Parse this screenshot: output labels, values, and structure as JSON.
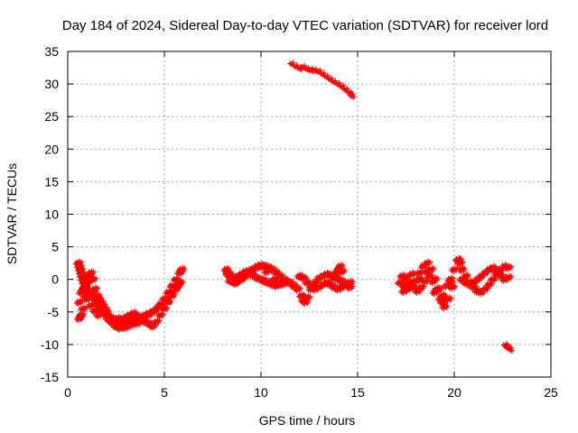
{
  "chart_data": {
    "type": "scatter",
    "title": "Day 184 of 2024, Sidereal Day-to-day VTEC variation (SDTVAR) for receiver lord",
    "xlabel": "GPS time / hours",
    "ylabel": "SDTVAR / TECUs",
    "xlim": [
      0,
      25
    ],
    "ylim": [
      -15,
      35
    ],
    "x_ticks": [
      0,
      5,
      10,
      15,
      20,
      25
    ],
    "y_ticks": [
      -15,
      -10,
      -5,
      0,
      5,
      10,
      15,
      20,
      25,
      30,
      35
    ],
    "grid": true,
    "marker": "+",
    "color": "#ff0000",
    "series": [
      {
        "name": "seg-0.5-2.5",
        "x": [
          0.55,
          0.6,
          0.65,
          0.7,
          0.75,
          0.8,
          0.85,
          0.9,
          1.0,
          1.1,
          1.2,
          1.3,
          1.4,
          1.5,
          1.6,
          1.7,
          1.8,
          1.9,
          2.0,
          2.1,
          2.2,
          2.3,
          2.4,
          2.5,
          0.6,
          0.7,
          0.8,
          0.9,
          1.0,
          1.1,
          1.2,
          1.3,
          1.4,
          1.5,
          1.6,
          1.7,
          1.8,
          1.9,
          2.0,
          2.2,
          2.4,
          0.6,
          0.7,
          0.8,
          0.9,
          1.0,
          1.2,
          1.4,
          1.6
        ],
        "y": [
          2.5,
          2.0,
          1.5,
          1.0,
          0.5,
          0.0,
          -0.5,
          -1.0,
          -1.5,
          -2.0,
          -2.0,
          -2.5,
          -3.0,
          -3.5,
          -4.0,
          -4.5,
          -5.0,
          -5.2,
          -5.5,
          -6.0,
          -6.3,
          -6.6,
          -6.8,
          -7.2,
          -3.5,
          -2.0,
          -1.5,
          -1.0,
          -0.5,
          0.5,
          1.0,
          0.0,
          -1.5,
          -2.5,
          -3.0,
          -3.5,
          -4.0,
          -4.5,
          -5.0,
          -5.8,
          -6.2,
          -6.0,
          -5.5,
          -4.5,
          -2.5,
          -3.0,
          -4.0,
          -4.8,
          -5.5
        ]
      },
      {
        "name": "seg-2.5-5.9",
        "x": [
          2.5,
          2.6,
          2.7,
          2.8,
          2.9,
          3.0,
          3.2,
          3.4,
          3.6,
          3.8,
          4.0,
          4.2,
          4.4,
          4.6,
          4.8,
          5.0,
          5.2,
          5.4,
          5.6,
          5.8,
          5.9,
          2.6,
          2.8,
          3.0,
          3.2,
          3.4,
          3.6,
          3.8,
          4.0,
          4.2,
          4.4,
          4.6,
          4.8,
          5.0,
          5.2,
          5.4,
          5.6,
          5.8,
          2.8,
          3.0,
          3.3,
          3.6,
          3.9,
          4.2,
          4.5,
          4.8,
          5.1,
          5.4,
          5.7
        ],
        "y": [
          -6.8,
          -7.2,
          -7.5,
          -7.0,
          -6.5,
          -6.8,
          -6.5,
          -6.2,
          -6.0,
          -5.8,
          -5.5,
          -5.2,
          -5.0,
          -4.5,
          -3.8,
          -3.0,
          -2.0,
          -1.0,
          0.0,
          1.0,
          1.5,
          -6.0,
          -6.2,
          -5.8,
          -5.5,
          -5.2,
          -5.6,
          -6.0,
          -6.5,
          -6.8,
          -7.2,
          -6.5,
          -5.5,
          -4.5,
          -3.5,
          -2.5,
          -1.5,
          -0.5,
          -7.0,
          -7.4,
          -7.0,
          -6.8,
          -6.2,
          -5.5,
          -4.8,
          -4.0,
          -3.0,
          -2.0,
          -1.0
        ]
      },
      {
        "name": "seg-8.2-11.5",
        "x": [
          8.2,
          8.3,
          8.4,
          8.5,
          8.6,
          8.8,
          9.0,
          9.2,
          9.4,
          9.6,
          9.8,
          10.0,
          10.2,
          10.4,
          10.6,
          10.8,
          11.0,
          11.2,
          11.4,
          8.4,
          8.6,
          8.8,
          9.0,
          9.2,
          9.4,
          9.6,
          9.8,
          10.0,
          10.2,
          10.4,
          10.6,
          10.8,
          11.0,
          11.2,
          8.3,
          8.7,
          9.1,
          9.5,
          9.9,
          10.3,
          10.7,
          11.1
        ],
        "y": [
          1.5,
          1.0,
          0.5,
          0.0,
          -0.5,
          -0.3,
          0.0,
          0.5,
          1.0,
          1.5,
          2.0,
          2.2,
          2.0,
          1.8,
          1.5,
          1.0,
          0.5,
          0.0,
          -0.5,
          -0.2,
          0.2,
          0.5,
          0.8,
          1.2,
          1.0,
          0.6,
          0.2,
          0.0,
          -0.3,
          -0.5,
          -0.8,
          -1.0,
          -0.6,
          -0.3,
          0.8,
          -0.6,
          0.3,
          1.5,
          1.9,
          1.2,
          0.0,
          -0.8
        ]
      },
      {
        "name": "seg-11.5-14.7",
        "x": [
          11.5,
          11.7,
          11.9,
          12.1,
          12.2,
          12.3,
          12.4,
          12.6,
          12.8,
          13.0,
          13.2,
          13.4,
          13.6,
          13.8,
          14.0,
          14.2,
          14.4,
          14.6,
          12.0,
          12.2,
          12.4,
          12.6,
          12.8,
          13.0,
          13.2,
          13.4,
          13.6,
          13.8,
          14.0,
          14.2,
          14.4,
          14.6,
          13.9,
          14.0,
          14.1,
          14.2
        ],
        "y": [
          -0.5,
          -1.0,
          -1.5,
          -2.5,
          -3.2,
          -3.5,
          -2.8,
          -1.5,
          -0.5,
          0.2,
          0.5,
          0.8,
          0.6,
          0.2,
          0.0,
          -0.3,
          -0.8,
          -1.2,
          0.5,
          0.2,
          -0.5,
          -1.0,
          -1.5,
          -1.2,
          -0.8,
          -0.5,
          -0.8,
          -1.2,
          -1.5,
          -1.2,
          -0.8,
          -0.5,
          1.0,
          1.5,
          2.0,
          1.2
        ]
      },
      {
        "name": "seg-high-11.6-14.7",
        "x": [
          11.6,
          11.8,
          12.0,
          12.2,
          12.4,
          12.6,
          12.8,
          13.0,
          13.2,
          13.4,
          13.6,
          13.8,
          14.0,
          14.2,
          14.4,
          14.6,
          14.7
        ],
        "y": [
          33.0,
          32.6,
          32.3,
          32.5,
          32.2,
          32.1,
          32.0,
          31.8,
          31.4,
          31.0,
          30.6,
          30.2,
          29.9,
          29.5,
          29.0,
          28.5,
          28.1
        ]
      },
      {
        "name": "seg-17.2-20.2",
        "x": [
          17.2,
          17.4,
          17.6,
          17.8,
          18.0,
          18.2,
          18.4,
          18.6,
          18.8,
          19.0,
          19.2,
          19.4,
          19.6,
          19.8,
          20.0,
          20.2,
          17.3,
          17.5,
          17.7,
          17.9,
          18.1,
          18.3,
          18.5,
          18.7,
          18.9,
          19.1,
          19.3,
          19.5,
          19.7,
          19.9,
          17.4,
          17.8,
          18.2,
          18.6,
          19.0,
          19.4,
          19.8
        ],
        "y": [
          -0.5,
          -1.0,
          -1.5,
          -1.0,
          -0.2,
          1.0,
          2.0,
          2.5,
          1.5,
          0.0,
          -1.5,
          -2.5,
          -1.0,
          0.0,
          1.5,
          3.0,
          0.5,
          0.2,
          -0.5,
          -1.2,
          -1.8,
          -1.2,
          -0.3,
          0.5,
          -0.3,
          -1.5,
          -3.0,
          -4.2,
          -3.0,
          -1.2,
          -1.8,
          0.8,
          0.0,
          1.2,
          -2.0,
          -3.5,
          -0.5
        ]
      },
      {
        "name": "seg-20.2-22.9",
        "x": [
          20.2,
          20.3,
          20.4,
          20.6,
          20.8,
          21.0,
          21.2,
          21.4,
          21.6,
          21.8,
          22.0,
          22.2,
          22.4,
          22.6,
          22.8,
          20.4,
          20.6,
          20.8,
          21.0,
          21.2,
          21.4,
          21.6,
          21.8,
          22.0,
          22.2,
          22.4,
          22.6,
          22.8
        ],
        "y": [
          3.0,
          2.5,
          1.5,
          0.5,
          -0.5,
          -1.2,
          -1.8,
          -2.0,
          -1.5,
          -0.8,
          0.0,
          0.8,
          1.5,
          2.0,
          1.8,
          0.0,
          -0.5,
          -0.8,
          -0.5,
          0.0,
          0.5,
          1.0,
          1.5,
          1.8,
          1.2,
          0.6,
          0.0,
          0.3
        ]
      },
      {
        "name": "seg-22.7-22.9",
        "x": [
          22.65,
          22.72,
          22.8,
          22.88
        ],
        "y": [
          -10.2,
          -10.4,
          -10.6,
          -10.8
        ]
      }
    ]
  }
}
